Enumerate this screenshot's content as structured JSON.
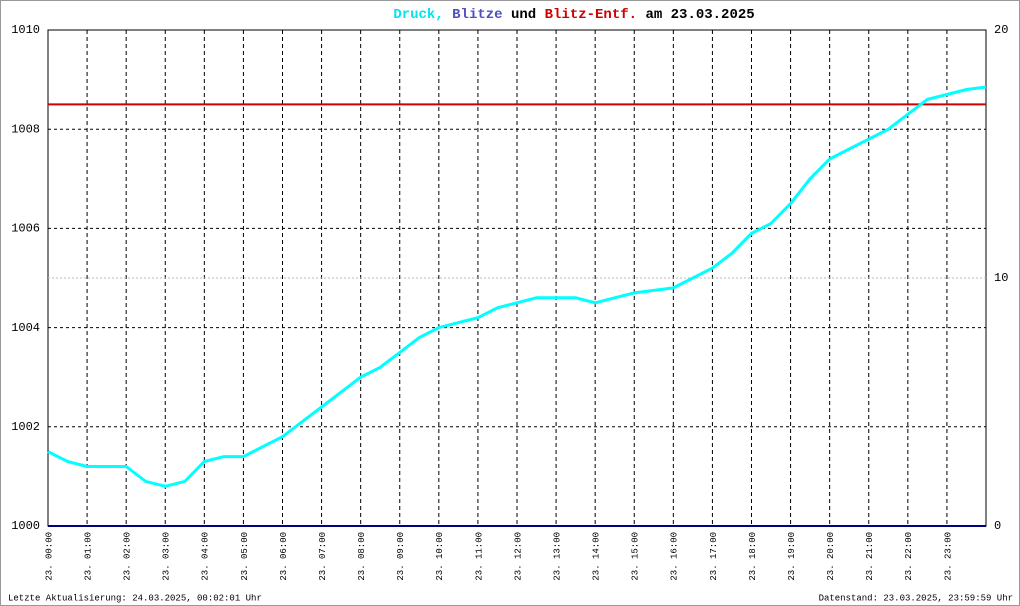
{
  "chart_data": {
    "type": "line",
    "title_parts": [
      {
        "text": "Druck,",
        "color": "#00e5ee"
      },
      {
        "text": "Blitze",
        "color": "#5050c0"
      },
      {
        "text": "und",
        "color": "#000000"
      },
      {
        "text": "Blitz-Entf.",
        "color": "#d00000"
      },
      {
        "text": "am 23.03.2025",
        "color": "#000000"
      }
    ],
    "x": [
      0,
      0.5,
      1,
      1.5,
      2,
      2.5,
      3,
      3.5,
      4,
      4.5,
      5,
      5.5,
      6,
      6.5,
      7,
      7.5,
      8,
      8.5,
      9,
      9.5,
      10,
      10.5,
      11,
      11.5,
      12,
      12.5,
      13,
      13.5,
      14,
      14.5,
      15,
      15.5,
      16,
      16.5,
      17,
      17.5,
      18,
      18.5,
      19,
      19.5,
      20,
      20.5,
      21,
      21.5,
      22,
      22.5,
      23,
      23.5,
      24
    ],
    "series": [
      {
        "name": "Druck",
        "color": "#00ffff",
        "values": [
          1001.5,
          1001.3,
          1001.2,
          1001.2,
          1001.2,
          1000.9,
          1000.8,
          1000.9,
          1001.3,
          1001.4,
          1001.4,
          1001.6,
          1001.8,
          1002.1,
          1002.4,
          1002.7,
          1003.0,
          1003.2,
          1003.5,
          1003.8,
          1004.0,
          1004.1,
          1004.2,
          1004.4,
          1004.5,
          1004.6,
          1004.6,
          1004.6,
          1004.5,
          1004.6,
          1004.7,
          1004.75,
          1004.8,
          1005.0,
          1005.2,
          1005.5,
          1005.9,
          1006.1,
          1006.5,
          1007.0,
          1007.4,
          1007.6,
          1007.8,
          1008.0,
          1008.3,
          1008.6,
          1008.7,
          1008.8,
          1008.85
        ]
      },
      {
        "name": "Blitze",
        "color": "#000080",
        "axis": "y2",
        "values": [
          0,
          0,
          0,
          0,
          0,
          0,
          0,
          0,
          0,
          0,
          0,
          0,
          0,
          0,
          0,
          0,
          0,
          0,
          0,
          0,
          0,
          0,
          0,
          0,
          0,
          0,
          0,
          0,
          0,
          0,
          0,
          0,
          0,
          0,
          0,
          0,
          0,
          0,
          0,
          0,
          0,
          0,
          0,
          0,
          0,
          0,
          0,
          0,
          0
        ]
      },
      {
        "name": "Blitz-Entf.",
        "color": "#d00000",
        "axis": "y2",
        "values": [
          17,
          17,
          17,
          17,
          17,
          17,
          17,
          17,
          17,
          17,
          17,
          17,
          17,
          17,
          17,
          17,
          17,
          17,
          17,
          17,
          17,
          17,
          17,
          17,
          17,
          17,
          17,
          17,
          17,
          17,
          17,
          17,
          17,
          17,
          17,
          17,
          17,
          17,
          17,
          17,
          17,
          17,
          17,
          17,
          17,
          17,
          17,
          17,
          17
        ]
      }
    ],
    "xlim": [
      0,
      24
    ],
    "xticks": [
      {
        "value": 0,
        "label": "23. 00:00"
      },
      {
        "value": 1,
        "label": "23. 01:00"
      },
      {
        "value": 2,
        "label": "23. 02:00"
      },
      {
        "value": 3,
        "label": "23. 03:00"
      },
      {
        "value": 4,
        "label": "23. 04:00"
      },
      {
        "value": 5,
        "label": "23. 05:00"
      },
      {
        "value": 6,
        "label": "23. 06:00"
      },
      {
        "value": 7,
        "label": "23. 07:00"
      },
      {
        "value": 8,
        "label": "23. 08:00"
      },
      {
        "value": 9,
        "label": "23. 09:00"
      },
      {
        "value": 10,
        "label": "23. 10:00"
      },
      {
        "value": 11,
        "label": "23. 11:00"
      },
      {
        "value": 12,
        "label": "23. 12:00"
      },
      {
        "value": 13,
        "label": "23. 13:00"
      },
      {
        "value": 14,
        "label": "23. 14:00"
      },
      {
        "value": 15,
        "label": "23. 15:00"
      },
      {
        "value": 16,
        "label": "23. 16:00"
      },
      {
        "value": 17,
        "label": "23. 17:00"
      },
      {
        "value": 18,
        "label": "23. 18:00"
      },
      {
        "value": 19,
        "label": "23. 19:00"
      },
      {
        "value": 20,
        "label": "23. 20:00"
      },
      {
        "value": 21,
        "label": "23. 21:00"
      },
      {
        "value": 22,
        "label": "23. 22:00"
      },
      {
        "value": 23,
        "label": "23. 23:00"
      }
    ],
    "ylim": [
      1000,
      1010
    ],
    "yticks": [
      1000,
      1002,
      1004,
      1006,
      1008,
      1010
    ],
    "y2lim": [
      0,
      20
    ],
    "y2ticks": [
      0,
      10,
      20
    ],
    "y2tick_colors": [
      "#000000",
      "#d00000",
      "#000000"
    ],
    "grid": true,
    "footer_left": "Letzte Aktualisierung: 24.03.2025, 00:02:01 Uhr",
    "footer_right": "Datenstand: 23.03.2025, 23:59:59 Uhr"
  }
}
